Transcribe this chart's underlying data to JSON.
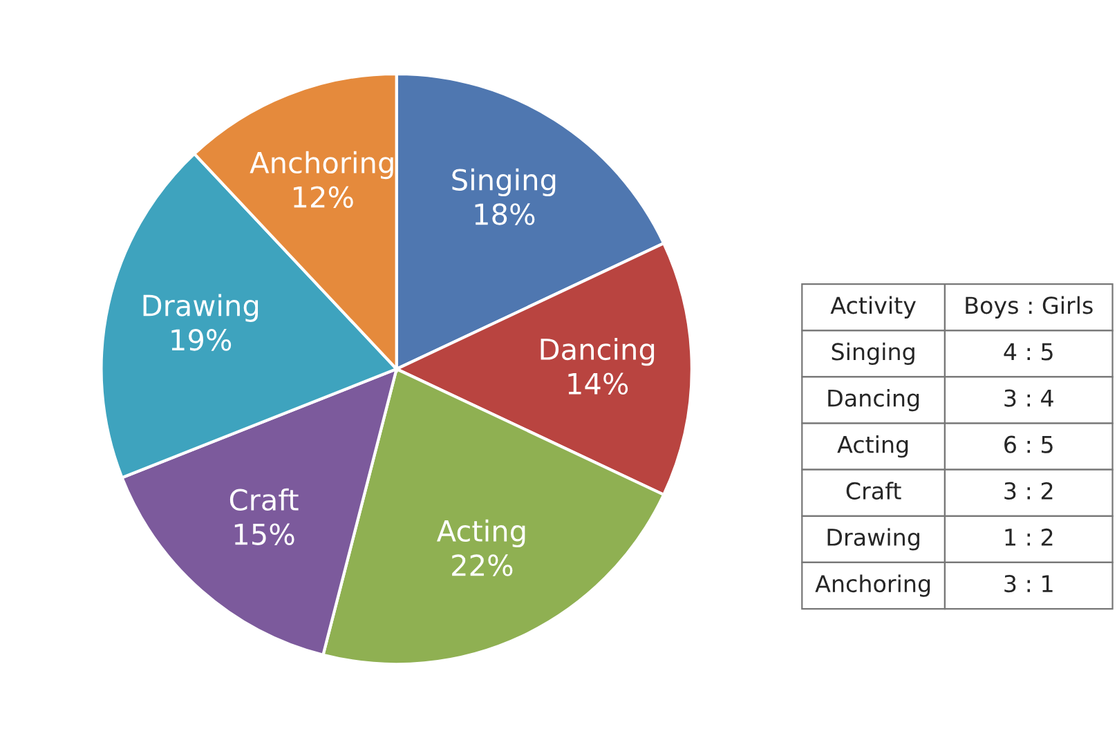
{
  "chart_data": [
    {
      "type": "pie",
      "categories": [
        "Singing",
        "Dancing",
        "Acting",
        "Craft",
        "Drawing",
        "Anchoring"
      ],
      "values": [
        18,
        14,
        22,
        15,
        19,
        12
      ],
      "value_labels": [
        "18%",
        "14%",
        "22%",
        "15%",
        "19%",
        "12%"
      ],
      "colors": [
        "#4f77b0",
        "#b94440",
        "#8fb052",
        "#7c5a9c",
        "#3ea3be",
        "#e58a3c"
      ]
    },
    {
      "type": "other",
      "annotations": [
        "Activity",
        "Boys : Girls",
        "Singing",
        "4 : 5",
        "Dancing",
        "3 : 4",
        "Acting",
        "6 : 5",
        "Craft",
        "3 : 2",
        "Drawing",
        "1 : 2",
        "Anchoring",
        "3 : 1"
      ]
    }
  ]
}
